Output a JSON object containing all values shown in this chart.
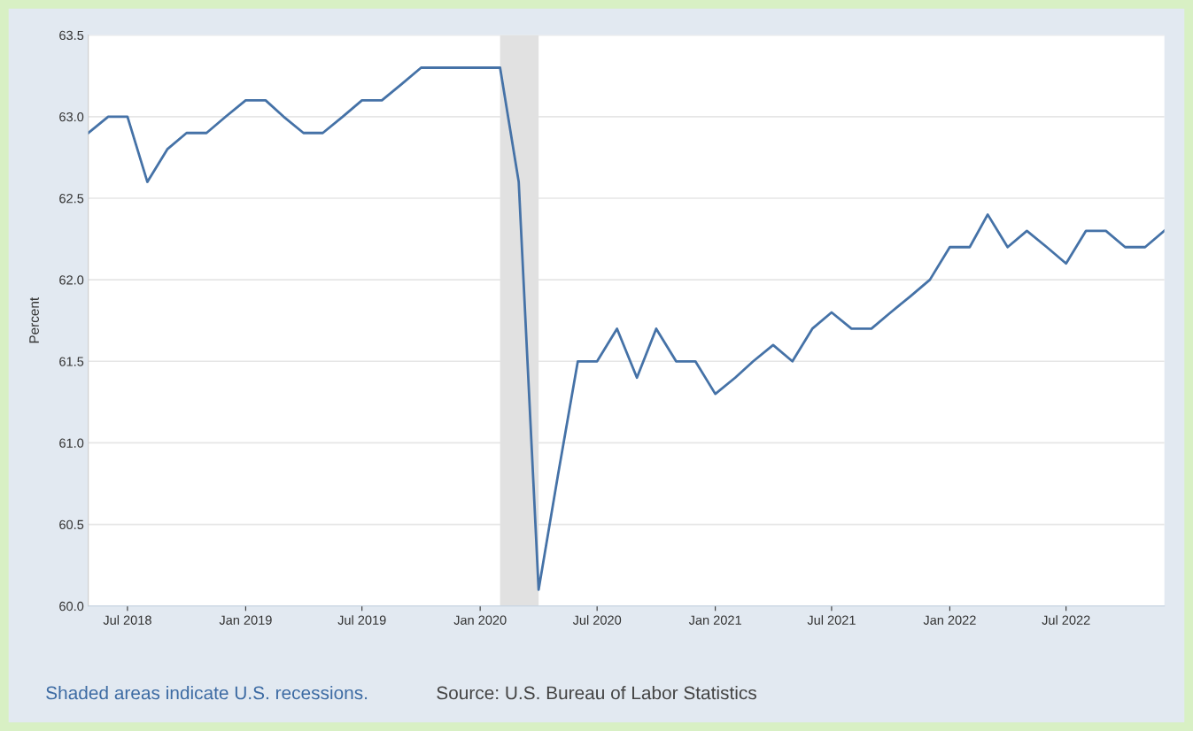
{
  "chart_data": {
    "type": "line",
    "ylabel": "Percent",
    "x": [
      "2018-05",
      "2018-06",
      "2018-07",
      "2018-08",
      "2018-09",
      "2018-10",
      "2018-11",
      "2018-12",
      "2019-01",
      "2019-02",
      "2019-03",
      "2019-04",
      "2019-05",
      "2019-06",
      "2019-07",
      "2019-08",
      "2019-09",
      "2019-10",
      "2019-11",
      "2019-12",
      "2020-01",
      "2020-02",
      "2020-03",
      "2020-04",
      "2020-05",
      "2020-06",
      "2020-07",
      "2020-08",
      "2020-09",
      "2020-10",
      "2020-11",
      "2020-12",
      "2021-01",
      "2021-02",
      "2021-03",
      "2021-04",
      "2021-05",
      "2021-06",
      "2021-07",
      "2021-08",
      "2021-09",
      "2021-10",
      "2021-11",
      "2021-12",
      "2022-01",
      "2022-02",
      "2022-03",
      "2022-04",
      "2022-05",
      "2022-06",
      "2022-07",
      "2022-08",
      "2022-09",
      "2022-10",
      "2022-11",
      "2022-12"
    ],
    "series": [
      {
        "color": "#4572a7",
        "values": [
          62.9,
          63.0,
          63.0,
          62.6,
          62.8,
          62.9,
          62.9,
          63.0,
          63.1,
          63.1,
          63.0,
          62.9,
          62.9,
          63.0,
          63.1,
          63.1,
          63.2,
          63.3,
          63.3,
          63.3,
          63.3,
          63.3,
          62.6,
          60.1,
          60.8,
          61.5,
          61.5,
          61.7,
          61.4,
          61.7,
          61.5,
          61.5,
          61.3,
          61.4,
          61.5,
          61.6,
          61.5,
          61.7,
          61.8,
          61.7,
          61.7,
          61.8,
          61.9,
          62.0,
          62.2,
          62.2,
          62.4,
          62.2,
          62.3,
          62.2,
          62.1,
          62.3,
          62.3,
          62.2,
          62.2,
          62.3
        ]
      }
    ],
    "xlim": [
      "2018-05",
      "2022-12"
    ],
    "xticks": [
      {
        "value": "2018-07",
        "label": "Jul 2018"
      },
      {
        "value": "2019-01",
        "label": "Jan 2019"
      },
      {
        "value": "2019-07",
        "label": "Jul 2019"
      },
      {
        "value": "2020-01",
        "label": "Jan 2020"
      },
      {
        "value": "2020-07",
        "label": "Jul 2020"
      },
      {
        "value": "2021-01",
        "label": "Jan 2021"
      },
      {
        "value": "2021-07",
        "label": "Jul 2021"
      },
      {
        "value": "2022-01",
        "label": "Jan 2022"
      },
      {
        "value": "2022-07",
        "label": "Jul 2022"
      }
    ],
    "ylim": [
      60.0,
      63.5
    ],
    "yticks": [
      {
        "value": 60.0,
        "label": "60.0"
      },
      {
        "value": 60.5,
        "label": "60.5"
      },
      {
        "value": 61.0,
        "label": "61.0"
      },
      {
        "value": 61.5,
        "label": "61.5"
      },
      {
        "value": 62.0,
        "label": "62.0"
      },
      {
        "value": 62.5,
        "label": "62.5"
      },
      {
        "value": 63.0,
        "label": "63.0"
      },
      {
        "value": 63.5,
        "label": "63.5"
      }
    ],
    "grid": "y",
    "marker": "none",
    "line_style": "solid",
    "bands": [
      {
        "axis": "x",
        "from": "2020-02",
        "to": "2020-04",
        "color": "#e1e1e1"
      }
    ],
    "annotations": [
      "Shaded areas indicate U.S. recessions.",
      "Source: U.S. Bureau of Labor Statistics"
    ]
  }
}
